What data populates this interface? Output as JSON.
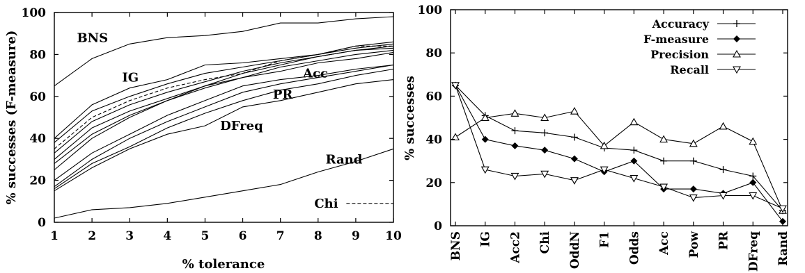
{
  "chart_data": [
    {
      "type": "line",
      "title": "",
      "xlabel": "% tolerance",
      "ylabel": "% successes (F-measure)",
      "xlim": [
        1,
        10
      ],
      "ylim": [
        0,
        100
      ],
      "x": [
        1,
        2,
        3,
        4,
        5,
        6,
        7,
        8,
        9,
        10
      ],
      "x_ticks": [
        "1",
        "2",
        "3",
        "4",
        "5",
        "6",
        "7",
        "8",
        "9",
        "10"
      ],
      "y_ticks": [
        "0",
        "20",
        "40",
        "60",
        "80",
        "100"
      ],
      "grid": false,
      "series": [
        {
          "name": "BNS",
          "values": [
            65,
            78,
            85,
            88,
            89,
            91,
            95,
            95,
            97,
            98
          ]
        },
        {
          "name": "IG",
          "values": [
            40,
            56,
            64,
            68,
            75,
            76,
            78,
            80,
            84,
            86
          ]
        },
        {
          "name": "Chi",
          "values": [
            35,
            50,
            58,
            64,
            68,
            71,
            77,
            80,
            84,
            84
          ],
          "style": "dashed"
        },
        {
          "name": "",
          "values": [
            38,
            53,
            60,
            66,
            71,
            74,
            77,
            80,
            83,
            85
          ]
        },
        {
          "name": "",
          "values": [
            33,
            48,
            56,
            62,
            67,
            72,
            76,
            79,
            82,
            84
          ]
        },
        {
          "name": "",
          "values": [
            30,
            45,
            53,
            59,
            65,
            71,
            75,
            79,
            82,
            83
          ]
        },
        {
          "name": "Acc",
          "values": [
            28,
            42,
            51,
            58,
            65,
            69,
            74,
            77,
            80,
            82
          ]
        },
        {
          "name": "",
          "values": [
            25,
            40,
            50,
            58,
            64,
            69,
            72,
            76,
            78,
            81
          ]
        },
        {
          "name": "PR",
          "values": [
            20,
            33,
            42,
            51,
            58,
            65,
            68,
            70,
            73,
            75
          ]
        },
        {
          "name": "",
          "values": [
            17,
            30,
            40,
            48,
            55,
            62,
            66,
            69,
            72,
            75
          ]
        },
        {
          "name": "",
          "values": [
            16,
            28,
            36,
            45,
            52,
            58,
            63,
            66,
            70,
            73
          ]
        },
        {
          "name": "DFreq",
          "values": [
            15,
            26,
            35,
            42,
            46,
            55,
            58,
            62,
            66,
            68
          ]
        },
        {
          "name": "Rand",
          "values": [
            2,
            6,
            7,
            9,
            12,
            15,
            18,
            24,
            29,
            35
          ]
        }
      ],
      "labels": [
        {
          "text": "BNS",
          "at": [
            1.6,
            86
          ]
        },
        {
          "text": "IG",
          "at": [
            2.8,
            67
          ]
        },
        {
          "text": "Acc",
          "at": [
            7.6,
            69
          ]
        },
        {
          "text": "PR",
          "at": [
            6.8,
            59
          ]
        },
        {
          "text": "DFreq",
          "at": [
            5.4,
            44
          ]
        },
        {
          "text": "Rand",
          "at": [
            8.2,
            28
          ]
        },
        {
          "text": "Chi",
          "at": [
            7.9,
            7
          ]
        }
      ],
      "legend": {
        "entries": [
          "Chi"
        ],
        "position": "bottom-right"
      }
    },
    {
      "type": "line",
      "title": "",
      "xlabel": "",
      "ylabel": "% successes",
      "ylim": [
        0,
        100
      ],
      "categories": [
        "BNS",
        "IG",
        "Acc2",
        "Chi",
        "OddN",
        "F1",
        "Odds",
        "Acc",
        "Pow",
        "PR",
        "DFreq",
        "Rand"
      ],
      "y_ticks": [
        "0",
        "20",
        "40",
        "60",
        "80",
        "100"
      ],
      "grid": false,
      "series": [
        {
          "name": "Accuracy",
          "marker": "plus",
          "values": [
            65,
            51,
            44,
            43,
            41,
            36,
            35,
            30,
            30,
            26,
            23,
            7
          ]
        },
        {
          "name": "F-measure",
          "marker": "diamond",
          "values": [
            65,
            40,
            37,
            35,
            31,
            25,
            30,
            17,
            17,
            15,
            20,
            2
          ]
        },
        {
          "name": "Precision",
          "marker": "triangle-up",
          "values": [
            41,
            50,
            52,
            50,
            53,
            37,
            48,
            40,
            38,
            46,
            39,
            7
          ]
        },
        {
          "name": "Recall",
          "marker": "triangle-down",
          "values": [
            65,
            26,
            23,
            24,
            21,
            26,
            22,
            18,
            13,
            14,
            14,
            8
          ]
        }
      ],
      "legend": {
        "entries": [
          "Accuracy",
          "F-measure",
          "Precision",
          "Recall"
        ],
        "position": "top-right"
      }
    }
  ]
}
